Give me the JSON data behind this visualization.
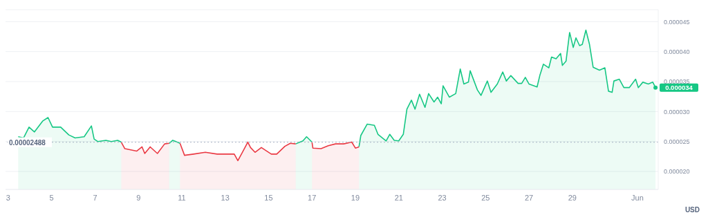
{
  "chart_data": {
    "type": "area",
    "x": [
      "--05-03T11:00",
      "--05-03T17:00",
      "--05-03T23:00",
      "--05-04T05:00",
      "--05-04T14:00",
      "--05-04T20:00",
      "--05-05T01:00",
      "--05-05T10:00",
      "--05-05T19:00",
      "--05-06T02:00",
      "--05-06T12:00",
      "--05-06T20:00",
      "--05-06T23:00",
      "--05-07T03:00",
      "--05-07T12:00",
      "--05-07T18:00",
      "--05-08T01:00",
      "--05-08T05:00",
      "--05-08T09:00",
      "--05-08T22:00",
      "--05-09T04:00",
      "--05-09T07:00",
      "--05-09T13:00",
      "--05-09T21:00",
      "--05-10T05:00",
      "--05-10T10:00",
      "--05-10T14:00",
      "--05-10T22:00",
      "--05-11T03:00",
      "--05-11T13:00",
      "--05-12T02:00",
      "--05-12T15:00",
      "--05-13T03:00",
      "--05-13T10:00",
      "--05-13T14:00",
      "--05-13T19:00",
      "--05-14T01:00",
      "--05-14T04:00",
      "--05-14T09:00",
      "--05-14T16:00",
      "--05-14T20:00",
      "--05-15T03:00",
      "--05-15T09:00",
      "--05-15T18:00",
      "--05-16T00:00",
      "--05-16T06:00",
      "--05-16T14:00",
      "--05-16T18:00",
      "--05-17T00:00",
      "--05-17T01:00",
      "--05-17T10:00",
      "--05-17T18:00",
      "--05-18T02:00",
      "--05-18T11:00",
      "--05-18T20:00",
      "--05-19T00:00",
      "--05-19T04:00",
      "--05-19T06:00",
      "--05-19T13:00",
      "--05-19T21:00",
      "--05-20T01:00",
      "--05-20T10:00",
      "--05-20T14:00",
      "--05-20T19:00",
      "--05-21T00:00",
      "--05-21T05:00",
      "--05-21T09:00",
      "--05-21T14:00",
      "--05-21T18:00",
      "--05-21T23:00",
      "--05-22T05:00",
      "--05-22T09:00",
      "--05-22T15:00",
      "--05-22T19:00",
      "--05-22T23:00",
      "--05-23T01:00",
      "--05-23T08:00",
      "--05-23T15:00",
      "--05-23T20:00",
      "--05-24T00:00",
      "--05-24T05:00",
      "--05-24T07:00",
      "--05-24T15:00",
      "--05-24T19:00",
      "--05-25T02:00",
      "--05-25T06:00",
      "--05-25T13:00",
      "--05-25T19:00",
      "--05-25T23:00",
      "--05-26T04:00",
      "--05-26T12:00",
      "--05-26T16:00",
      "--05-26T20:00",
      "--05-27T00:00",
      "--05-27T09:00",
      "--05-27T12:00",
      "--05-27T16:00",
      "--05-27T22:00",
      "--05-28T01:00",
      "--05-28T06:00",
      "--05-28T11:00",
      "--05-28T13:00",
      "--05-28T17:00",
      "--05-28T21:00",
      "--05-29T01:00",
      "--05-29T04:00",
      "--05-29T08:00",
      "--05-29T11:00",
      "--05-29T15:00",
      "--05-29T19:00",
      "--05-29T23:00",
      "--05-30T06:00",
      "--05-30T12:00",
      "--05-30T16:00",
      "--05-30T20:00",
      "--05-30T22:00",
      "--05-31T04:00",
      "--05-31T09:00",
      "--05-31T15:00",
      "--05-31T22:00",
      "--06-01T01:00",
      "--06-01T06:00",
      "--06-01T12:00",
      "--06-01T17:00",
      "--06-01T20:00"
    ],
    "series": [
      {
        "color": "#16c784",
        "values": [
          2.58e-05,
          2.56e-05,
          2.74e-05,
          2.66e-05,
          2.84e-05,
          2.9e-05,
          2.74e-05,
          2.74e-05,
          2.61e-05,
          2.56e-05,
          2.58e-05,
          2.76e-05,
          2.54e-05,
          2.5e-05,
          2.52e-05,
          2.5e-05,
          2.52e-05,
          2.49e-05,
          null,
          null,
          null,
          null,
          null,
          null,
          null,
          2.47e-05,
          2.52e-05,
          2.47e-05,
          null,
          null,
          null,
          null,
          null,
          null,
          null,
          null,
          null,
          null,
          null,
          null,
          null,
          null,
          null,
          null,
          null,
          2.46e-05,
          2.51e-05,
          2.58e-05,
          2.49e-05,
          null,
          null,
          null,
          null,
          null,
          null,
          null,
          2.41e-05,
          2.6e-05,
          2.79e-05,
          2.77e-05,
          2.62e-05,
          2.51e-05,
          2.62e-05,
          2.52e-05,
          2.51e-05,
          2.62e-05,
          3.04e-05,
          3.19e-05,
          3.04e-05,
          3.29e-05,
          3.07e-05,
          3.3e-05,
          3.16e-05,
          3.24e-05,
          3.13e-05,
          3.43e-05,
          3.24e-05,
          3.3e-05,
          3.71e-05,
          3.46e-05,
          3.49e-05,
          3.68e-05,
          3.36e-05,
          3.27e-05,
          3.51e-05,
          3.32e-05,
          3.46e-05,
          3.66e-05,
          3.51e-05,
          3.6e-05,
          3.47e-05,
          3.47e-05,
          3.57e-05,
          3.46e-05,
          3.41e-05,
          3.6e-05,
          3.79e-05,
          3.73e-05,
          3.91e-05,
          3.88e-05,
          3.97e-05,
          3.77e-05,
          3.84e-05,
          4.32e-05,
          4.07e-05,
          4.23e-05,
          4.1e-05,
          4.12e-05,
          4.36e-05,
          4.12e-05,
          3.74e-05,
          3.69e-05,
          3.73e-05,
          3.34e-05,
          3.32e-05,
          3.51e-05,
          3.54e-05,
          3.4e-05,
          3.4e-05,
          3.54e-05,
          3.4e-05,
          3.49e-05,
          3.46e-05,
          3.49e-05,
          3.4e-05
        ]
      },
      {
        "color": "#ea3943",
        "values": [
          null,
          null,
          null,
          null,
          null,
          null,
          null,
          null,
          null,
          null,
          null,
          null,
          null,
          null,
          null,
          null,
          null,
          2.49e-05,
          2.38e-05,
          2.34e-05,
          2.41e-05,
          2.3e-05,
          2.41e-05,
          2.3e-05,
          2.46e-05,
          2.47e-05,
          null,
          2.47e-05,
          2.27e-05,
          2.29e-05,
          2.32e-05,
          2.29e-05,
          2.29e-05,
          2.29e-05,
          2.18e-05,
          2.32e-05,
          2.49e-05,
          2.4e-05,
          2.32e-05,
          2.4e-05,
          2.36e-05,
          2.29e-05,
          2.29e-05,
          2.42e-05,
          2.47e-05,
          2.46e-05,
          null,
          null,
          2.49e-05,
          2.39e-05,
          2.38e-05,
          2.43e-05,
          2.46e-05,
          2.46e-05,
          2.49e-05,
          2.39e-05,
          2.41e-05,
          null,
          null,
          null,
          null,
          null,
          null,
          null,
          null,
          null,
          null,
          null,
          null,
          null,
          null,
          null,
          null,
          null,
          null,
          null,
          null,
          null,
          null,
          null,
          null,
          null,
          null,
          null,
          null,
          null,
          null,
          null,
          null,
          null,
          null,
          null,
          null,
          null,
          null,
          null,
          null,
          null,
          null,
          null,
          null,
          null,
          null,
          null,
          null,
          null,
          null,
          null,
          null,
          null,
          null,
          null,
          null,
          null,
          null,
          null,
          null,
          null,
          null,
          null,
          null,
          null,
          null,
          null,
          null
        ]
      }
    ],
    "xlim": [
      "--05-02T21:00",
      "--06-01T23:00"
    ],
    "xticks": [
      {
        "value": "--05-03",
        "label": "3"
      },
      {
        "value": "--05-05",
        "label": "5"
      },
      {
        "value": "--05-07",
        "label": "7"
      },
      {
        "value": "--05-09",
        "label": "9"
      },
      {
        "value": "--05-11",
        "label": "11"
      },
      {
        "value": "--05-13",
        "label": "13"
      },
      {
        "value": "--05-15",
        "label": "15"
      },
      {
        "value": "--05-17",
        "label": "17"
      },
      {
        "value": "--05-19",
        "label": "19"
      },
      {
        "value": "--05-21",
        "label": "21"
      },
      {
        "value": "--05-23",
        "label": "23"
      },
      {
        "value": "--05-25",
        "label": "25"
      },
      {
        "value": "--05-27",
        "label": "27"
      },
      {
        "value": "--05-29",
        "label": "29"
      },
      {
        "value": "--06-01",
        "label": "Jun"
      }
    ],
    "ylim": [
      1.7e-05,
      4.7e-05
    ],
    "yticks": [
      {
        "value": 2e-05,
        "label": "0.000020"
      },
      {
        "value": 2.5e-05,
        "label": "0.000025"
      },
      {
        "value": 3e-05,
        "label": "0.000030"
      },
      {
        "value": 3.5e-05,
        "label": "0.000035"
      },
      {
        "value": 4e-05,
        "label": "0.000040"
      },
      {
        "value": 4.5e-05,
        "label": "0.000045"
      }
    ],
    "grid": "y",
    "marker": "none",
    "line_style": "solid",
    "ref_lines": [
      {
        "axis": "y",
        "value": 2.488e-05,
        "label": "0.00002488",
        "color": "#a6b0c3",
        "line_style": "dotted"
      }
    ],
    "annotations": [
      {
        "text": "0.000034",
        "x": "--06-01T20:00",
        "y": 3.4e-05
      },
      "USD"
    ]
  }
}
